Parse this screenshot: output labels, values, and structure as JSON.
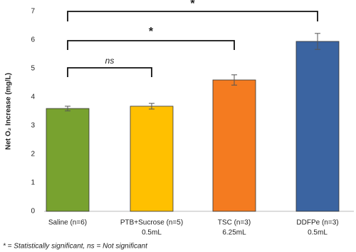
{
  "chart_data": {
    "type": "bar",
    "y_label": "Net O₂ Increase (mg/L)",
    "categories": [
      [
        "Saline (n=6)"
      ],
      [
        "PTB+Sucrose (n=5)",
        "0.5mL"
      ],
      [
        "TSC (n=3)",
        "6.25mL"
      ],
      [
        "DDFPe (n=3)",
        "0.5mL"
      ]
    ],
    "values": [
      3.6,
      3.68,
      4.6,
      5.95
    ],
    "errors": [
      0.08,
      0.1,
      0.18,
      0.28
    ],
    "colors": [
      "#78a22f",
      "#ffc000",
      "#f47b20",
      "#3b64a1"
    ],
    "ylim": [
      0,
      7
    ],
    "yticks": [
      0,
      1,
      2,
      3,
      4,
      5,
      6,
      7
    ],
    "annotations": [
      {
        "label": "ns"
      },
      {
        "label": "*"
      },
      {
        "label": "*"
      }
    ],
    "footnote": "* = Statistically significant, ns = Not significant"
  }
}
